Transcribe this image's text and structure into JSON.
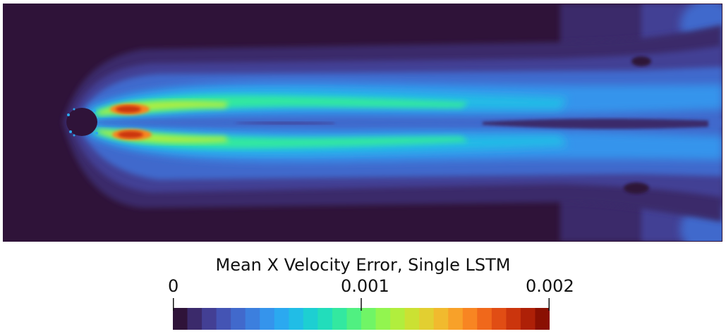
{
  "figure": {
    "colorbar": {
      "title": "Mean X Velocity Error,  Single LSTM",
      "ticks": [
        {
          "label": "0",
          "value": 0
        },
        {
          "label": "0.001",
          "value": 0.001
        },
        {
          "label": "0.002",
          "value": 0.002
        }
      ],
      "range": [
        0,
        0.002
      ],
      "levels": 26,
      "colors": [
        "#2f1339",
        "#3b2a6b",
        "#433f94",
        "#4454b4",
        "#4169cc",
        "#3c7fde",
        "#3594ec",
        "#2ba9f0",
        "#21bde6",
        "#1dcfd2",
        "#22ddbb",
        "#33e8a0",
        "#50f081",
        "#70f566",
        "#92f54f",
        "#b1ee3d",
        "#cbe133",
        "#e2cf31",
        "#f1ba2e",
        "#f8a129",
        "#f88522",
        "#f0681b",
        "#e14d14",
        "#cb350d",
        "#ae2007",
        "#8a1002"
      ]
    }
  }
}
